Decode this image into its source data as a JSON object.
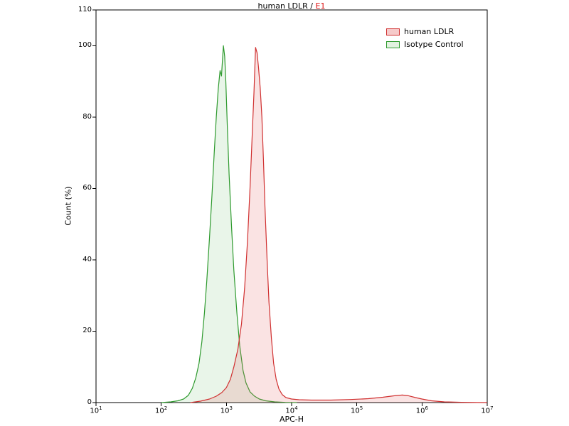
{
  "title": {
    "main": "human LDLR /",
    "accent": "E1",
    "accent_color": "#dd1111"
  },
  "chart_data": {
    "type": "area",
    "subtype": "flow-cytometry-histogram",
    "title": "human LDLR / E1",
    "xlabel": "APC-H",
    "ylabel": "Count (%)",
    "x_scale": "log",
    "xlog_range": [
      1,
      7
    ],
    "ylim": [
      0,
      110
    ],
    "x_ticks_exponents": [
      1,
      2,
      3,
      4,
      5,
      6,
      7
    ],
    "y_ticks": [
      0,
      20,
      40,
      60,
      80,
      100,
      110
    ],
    "grid": false,
    "legend_position": "top-right",
    "series": [
      {
        "name": "human LDLR",
        "stroke": "#d03030",
        "fill": "rgba(225,100,100,0.18)",
        "legend_fill": "#f6caca",
        "peak_x": 2800,
        "peak_y": 99.5,
        "points": [
          [
            280,
            0
          ],
          [
            400,
            0.4
          ],
          [
            550,
            1
          ],
          [
            700,
            1.8
          ],
          [
            850,
            2.8
          ],
          [
            1000,
            4.2
          ],
          [
            1150,
            6.5
          ],
          [
            1300,
            10
          ],
          [
            1500,
            15
          ],
          [
            1700,
            22
          ],
          [
            1900,
            32
          ],
          [
            2100,
            45
          ],
          [
            2300,
            60
          ],
          [
            2500,
            76
          ],
          [
            2650,
            87
          ],
          [
            2800,
            99.5
          ],
          [
            2950,
            98
          ],
          [
            3100,
            94
          ],
          [
            3300,
            88
          ],
          [
            3500,
            80
          ],
          [
            3700,
            68
          ],
          [
            3900,
            55
          ],
          [
            4200,
            40
          ],
          [
            4500,
            28
          ],
          [
            4900,
            18
          ],
          [
            5300,
            11
          ],
          [
            5800,
            6.5
          ],
          [
            6400,
            3.8
          ],
          [
            7200,
            2.2
          ],
          [
            8200,
            1.4
          ],
          [
            10000,
            1
          ],
          [
            13000,
            0.8
          ],
          [
            20000,
            0.7
          ],
          [
            40000,
            0.7
          ],
          [
            80000,
            0.85
          ],
          [
            150000,
            1.1
          ],
          [
            250000,
            1.5
          ],
          [
            380000,
            1.9
          ],
          [
            500000,
            2.1
          ],
          [
            620000,
            1.9
          ],
          [
            800000,
            1.4
          ],
          [
            1000000,
            1
          ],
          [
            1400000,
            0.5
          ],
          [
            2200000,
            0.2
          ],
          [
            4000000,
            0.08
          ],
          [
            7000000,
            0.02
          ],
          [
            10000000,
            0
          ]
        ]
      },
      {
        "name": "Isotype Control",
        "stroke": "#2e9a2e",
        "fill": "rgba(110,190,110,0.15)",
        "legend_fill": "#e2f2e0",
        "peak_x": 900,
        "peak_y": 100,
        "points": [
          [
            100,
            0
          ],
          [
            140,
            0.2
          ],
          [
            180,
            0.5
          ],
          [
            220,
            1
          ],
          [
            260,
            2
          ],
          [
            300,
            4
          ],
          [
            340,
            7
          ],
          [
            380,
            11
          ],
          [
            420,
            17
          ],
          [
            460,
            25
          ],
          [
            500,
            34
          ],
          [
            550,
            46
          ],
          [
            600,
            58
          ],
          [
            650,
            70
          ],
          [
            700,
            80
          ],
          [
            750,
            88
          ],
          [
            800,
            93
          ],
          [
            840,
            91.5
          ],
          [
            870,
            96
          ],
          [
            900,
            100
          ],
          [
            940,
            97
          ],
          [
            980,
            90
          ],
          [
            1030,
            78
          ],
          [
            1100,
            64
          ],
          [
            1200,
            49
          ],
          [
            1300,
            37
          ],
          [
            1450,
            25
          ],
          [
            1600,
            16
          ],
          [
            1800,
            9
          ],
          [
            2000,
            5.5
          ],
          [
            2300,
            3
          ],
          [
            2700,
            1.8
          ],
          [
            3200,
            1
          ],
          [
            4000,
            0.5
          ],
          [
            5500,
            0.2
          ],
          [
            8000,
            0.05
          ],
          [
            12000,
            0
          ]
        ]
      }
    ]
  }
}
